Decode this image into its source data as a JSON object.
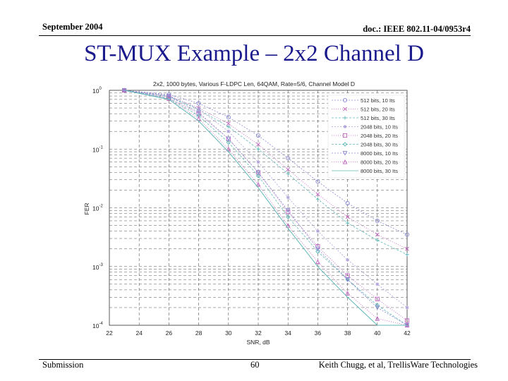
{
  "header": {
    "date": "September 2004",
    "doc": "doc.: IEEE 802.11-04/0953r4"
  },
  "slide_title": "ST-MUX Example – 2x2 Channel D",
  "footer": {
    "left": "Submission",
    "page": "60",
    "right": "Keith Chugg, et al, TrellisWare Technologies"
  },
  "colors": {
    "title": "#1a1a8c",
    "grid": "#555555",
    "series_c1": "#8a8ad6",
    "series_c2": "#c060c0",
    "series_c3": "#60b8b8",
    "series_c4": "#b0a0d8"
  },
  "chart_data": {
    "type": "line",
    "title": "2x2, 1000 bytes, Various F-LDPC Len, 64QAM, Rate=5/6, Channel Model D",
    "xlabel": "SNR, dB",
    "ylabel": "FER",
    "xlim": [
      22,
      42
    ],
    "ylim_log10": [
      -4,
      0
    ],
    "yscale": "log",
    "grid": true,
    "legend_position": "top-right",
    "x_ticks": [
      "22",
      "24",
      "26",
      "28",
      "30",
      "32",
      "34",
      "36",
      "38",
      "40",
      "42"
    ],
    "y_ticks": [
      {
        "base": "10",
        "exp": "0",
        "exponent": 0
      },
      {
        "base": "10",
        "exp": "-1",
        "exponent": -1
      },
      {
        "base": "10",
        "exp": "-2",
        "exponent": -2
      },
      {
        "base": "10",
        "exp": "-3",
        "exponent": -3
      },
      {
        "base": "10",
        "exp": "-4",
        "exponent": -4
      }
    ],
    "series": [
      {
        "name": "512 bits, 10 Its",
        "color": "#8a8ad6",
        "marker": "o",
        "x": [
          23,
          26,
          28,
          30,
          32,
          34,
          36,
          38,
          40,
          42
        ],
        "y": [
          1.0,
          0.85,
          0.6,
          0.35,
          0.17,
          0.07,
          0.028,
          0.012,
          0.006,
          0.0035
        ]
      },
      {
        "name": "512 bits, 20 Its",
        "color": "#c060c0",
        "marker": "x",
        "x": [
          23,
          26,
          28,
          30,
          32,
          34,
          36,
          38,
          40,
          42
        ],
        "y": [
          1.0,
          0.8,
          0.5,
          0.27,
          0.12,
          0.045,
          0.017,
          0.007,
          0.0035,
          0.002
        ]
      },
      {
        "name": "512 bits, 30 Its",
        "color": "#60b8b8",
        "marker": "+",
        "x": [
          23,
          26,
          28,
          30,
          32,
          34,
          36,
          38,
          40,
          42
        ],
        "y": [
          1.0,
          0.78,
          0.47,
          0.24,
          0.1,
          0.038,
          0.014,
          0.0055,
          0.0028,
          0.0016
        ]
      },
      {
        "name": "2048 bits, 10 Its",
        "color": "#b0a0d8",
        "marker": "*",
        "x": [
          23,
          26,
          28,
          30,
          32,
          34,
          36,
          38,
          40,
          42
        ],
        "y": [
          1.0,
          0.82,
          0.48,
          0.2,
          0.06,
          0.015,
          0.004,
          0.0013,
          0.0005,
          0.0002
        ]
      },
      {
        "name": "2048 bits, 20 Its",
        "color": "#c060c0",
        "marker": "s",
        "x": [
          23,
          26,
          28,
          30,
          32,
          34,
          36,
          38,
          40,
          42
        ],
        "y": [
          1.0,
          0.75,
          0.4,
          0.15,
          0.04,
          0.0085,
          0.0022,
          0.0007,
          0.00028,
          0.00012
        ]
      },
      {
        "name": "2048 bits, 30 Its",
        "color": "#60b8b8",
        "marker": "d",
        "x": [
          23,
          26,
          28,
          30,
          32,
          34,
          36,
          38,
          40,
          42
        ],
        "y": [
          1.0,
          0.73,
          0.37,
          0.13,
          0.035,
          0.007,
          0.0018,
          0.0006,
          0.00022,
          0.0001
        ]
      },
      {
        "name": "8000 bits, 10 Its",
        "color": "#8a8ad6",
        "marker": "v",
        "x": [
          23,
          26,
          28,
          30,
          32,
          34,
          36,
          38,
          40,
          42
        ],
        "y": [
          1.0,
          0.8,
          0.42,
          0.15,
          0.04,
          0.009,
          0.002,
          0.0006,
          0.0002,
          0.0001
        ]
      },
      {
        "name": "8000 bits, 20 Its",
        "color": "#c060c0",
        "marker": "^",
        "x": [
          23,
          26,
          28,
          30,
          32,
          34,
          36,
          38,
          40,
          42
        ],
        "y": [
          1.0,
          0.72,
          0.33,
          0.1,
          0.025,
          0.005,
          0.0012,
          0.00035,
          0.00013,
          0.0001
        ]
      },
      {
        "name": "8000 bits, 30 Its",
        "color": "#60b8b8",
        "marker": "line",
        "x": [
          23,
          26,
          28,
          30,
          32,
          34,
          36,
          38,
          40,
          42
        ],
        "y": [
          1.0,
          0.7,
          0.3,
          0.09,
          0.022,
          0.0045,
          0.001,
          0.0003,
          0.0001,
          0.0001
        ]
      }
    ]
  }
}
